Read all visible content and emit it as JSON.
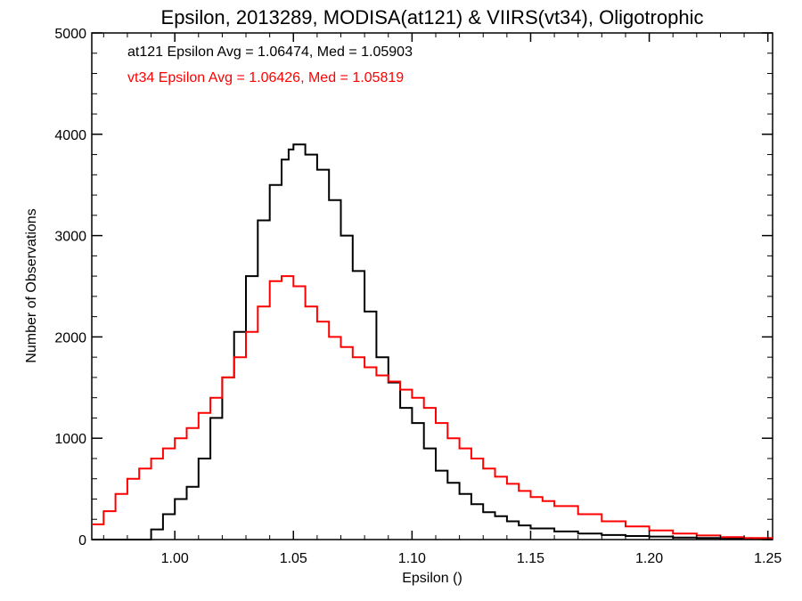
{
  "chart_data": {
    "type": "line",
    "title": "Epsilon, 2013289, MODISA(at121) & VIIRS(vt34), Oligotrophic",
    "xlabel": "Epsilon ()",
    "ylabel": "Number of Observations",
    "xlim": [
      0.965,
      1.252
    ],
    "ylim": [
      0,
      5000
    ],
    "x_ticks": [
      1.0,
      1.05,
      1.1,
      1.15,
      1.2,
      1.25
    ],
    "x_tick_labels": [
      "1.00",
      "1.05",
      "1.10",
      "1.15",
      "1.20",
      "1.25"
    ],
    "y_ticks": [
      0,
      1000,
      2000,
      3000,
      4000,
      5000
    ],
    "y_tick_labels": [
      "0",
      "1000",
      "2000",
      "3000",
      "4000",
      "5000"
    ],
    "grid": false,
    "annotations": [
      {
        "text": "at121 Epsilon Avg = 1.06474, Med = 1.05903",
        "color": "#000000"
      },
      {
        "text": "vt34 Epsilon Avg = 1.06426, Med = 1.05819",
        "color": "#ff0000"
      }
    ],
    "series": [
      {
        "name": "at121",
        "color": "#000000",
        "step": true,
        "x": [
          0.965,
          0.975,
          0.985,
          0.99,
          0.995,
          1.0,
          1.005,
          1.01,
          1.015,
          1.02,
          1.025,
          1.03,
          1.035,
          1.04,
          1.045,
          1.048,
          1.05,
          1.055,
          1.06,
          1.065,
          1.07,
          1.075,
          1.08,
          1.085,
          1.09,
          1.095,
          1.1,
          1.105,
          1.11,
          1.115,
          1.12,
          1.125,
          1.13,
          1.135,
          1.14,
          1.145,
          1.15,
          1.16,
          1.17,
          1.18,
          1.19,
          1.2,
          1.21,
          1.22,
          1.23,
          1.24,
          1.252
        ],
        "y": [
          0,
          0,
          0,
          100,
          250,
          400,
          520,
          800,
          1200,
          1600,
          2050,
          2600,
          3150,
          3500,
          3750,
          3850,
          3900,
          3800,
          3650,
          3350,
          3000,
          2650,
          2250,
          1800,
          1550,
          1300,
          1150,
          900,
          680,
          560,
          450,
          350,
          270,
          230,
          180,
          140,
          110,
          80,
          60,
          45,
          35,
          30,
          20,
          15,
          10,
          10,
          5
        ]
      },
      {
        "name": "vt34",
        "color": "#ff0000",
        "step": true,
        "x": [
          0.965,
          0.97,
          0.975,
          0.98,
          0.985,
          0.99,
          0.995,
          1.0,
          1.005,
          1.01,
          1.015,
          1.02,
          1.025,
          1.03,
          1.035,
          1.04,
          1.045,
          1.05,
          1.055,
          1.06,
          1.065,
          1.07,
          1.075,
          1.08,
          1.085,
          1.09,
          1.095,
          1.1,
          1.105,
          1.11,
          1.115,
          1.12,
          1.125,
          1.13,
          1.135,
          1.14,
          1.145,
          1.15,
          1.155,
          1.16,
          1.17,
          1.18,
          1.19,
          1.2,
          1.21,
          1.22,
          1.23,
          1.24,
          1.252
        ],
        "y": [
          150,
          280,
          450,
          600,
          700,
          800,
          900,
          1000,
          1100,
          1250,
          1400,
          1600,
          1800,
          2050,
          2300,
          2550,
          2600,
          2500,
          2300,
          2150,
          2000,
          1900,
          1800,
          1700,
          1620,
          1560,
          1480,
          1400,
          1300,
          1150,
          1000,
          900,
          800,
          700,
          620,
          550,
          480,
          420,
          380,
          330,
          250,
          180,
          130,
          90,
          60,
          40,
          25,
          15,
          5
        ]
      }
    ]
  }
}
